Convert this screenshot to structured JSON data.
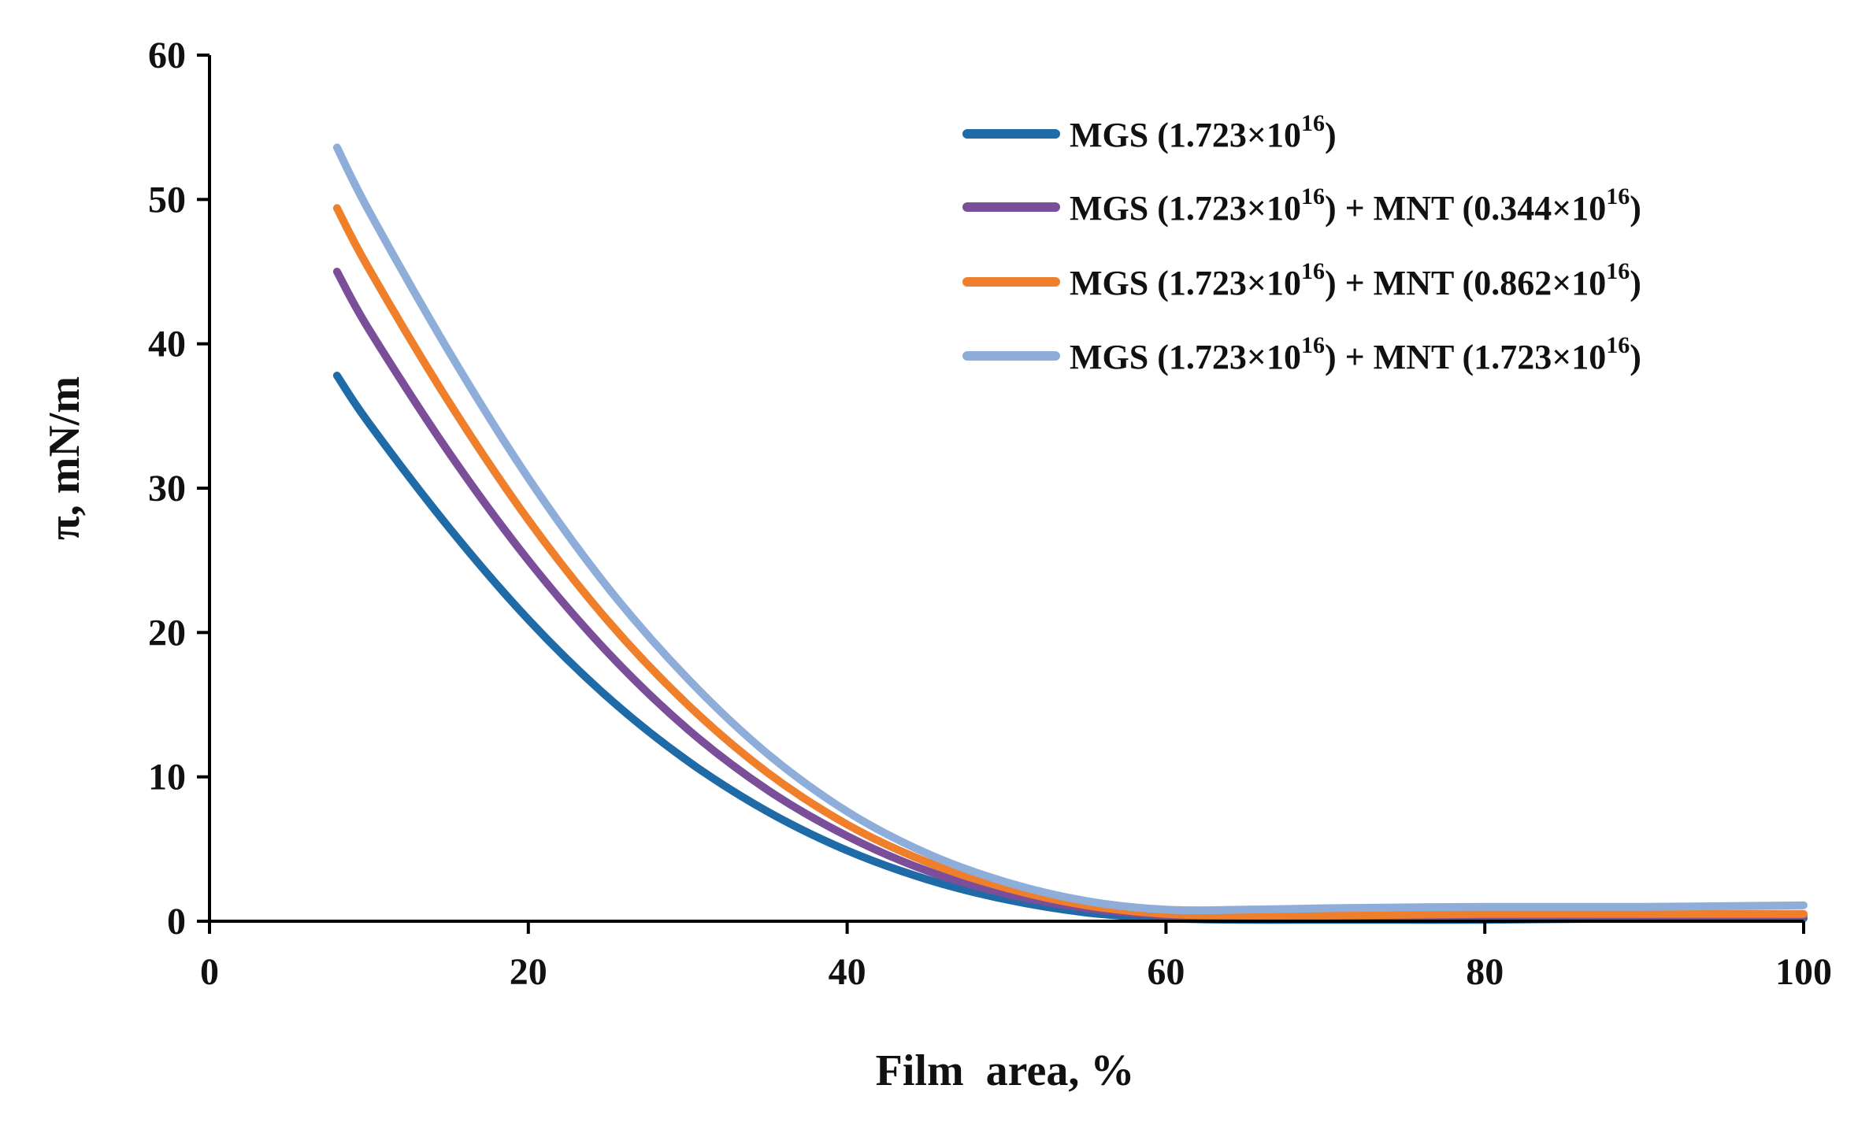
{
  "chart_data": {
    "type": "line",
    "title": "",
    "xlabel": "Film  area, %",
    "ylabel": "π, mN/m",
    "xlim": [
      0,
      100
    ],
    "ylim": [
      0,
      60
    ],
    "xticks": [
      "0",
      "20",
      "40",
      "60",
      "80",
      "100"
    ],
    "yticks": [
      "0",
      "10",
      "20",
      "30",
      "40",
      "50",
      "60"
    ],
    "grid": false,
    "legend_position": "top-right",
    "series": [
      {
        "name": "MGS (1.723×10^16)",
        "label_parts": [
          "MGS (1.723×10",
          "16",
          ")"
        ],
        "color": "#1F6BA8",
        "x": [
          8,
          10,
          15,
          20,
          25,
          30,
          35,
          40,
          45,
          50,
          55,
          60,
          65,
          70,
          80,
          90,
          100
        ],
        "y": [
          37.8,
          34.5,
          27.3,
          20.9,
          15.5,
          11.1,
          7.6,
          4.9,
          2.9,
          1.5,
          0.6,
          0.2,
          0.1,
          0.1,
          0.1,
          0.2,
          0.2
        ]
      },
      {
        "name": "MGS (1.723×10^16) + MNT (0.344×10^16)",
        "label_parts": [
          "MGS (1.723×10",
          "16",
          ") + MNT (0.344×10",
          "16",
          ")"
        ],
        "color": "#7B4E9A",
        "x": [
          8,
          10,
          15,
          20,
          25,
          30,
          35,
          40,
          45,
          50,
          55,
          60,
          65,
          70,
          80,
          90,
          100
        ],
        "y": [
          45.0,
          41.0,
          32.5,
          25.0,
          18.6,
          13.3,
          9.1,
          5.9,
          3.5,
          1.9,
          0.9,
          0.4,
          0.2,
          0.2,
          0.3,
          0.4,
          0.4
        ]
      },
      {
        "name": "MGS (1.723×10^16) + MNT (0.862×10^16)",
        "label_parts": [
          "MGS (1.723×10",
          "16",
          ") + MNT (0.862×10",
          "16",
          ")"
        ],
        "color": "#F07F2B",
        "x": [
          8,
          10,
          15,
          20,
          25,
          30,
          35,
          40,
          45,
          50,
          55,
          60,
          65,
          70,
          80,
          90,
          100
        ],
        "y": [
          49.4,
          45.2,
          36.0,
          27.8,
          20.8,
          15.0,
          10.3,
          6.7,
          4.1,
          2.3,
          1.1,
          0.5,
          0.4,
          0.4,
          0.5,
          0.5,
          0.5
        ]
      },
      {
        "name": "MGS (1.723×10^16) + MNT (1.723×10^16)",
        "label_parts": [
          "MGS (1.723×10",
          "16",
          ") + MNT (1.723×10",
          "16",
          ")"
        ],
        "color": "#8EAED9",
        "x": [
          8,
          10,
          15,
          20,
          25,
          30,
          35,
          40,
          45,
          50,
          55,
          60,
          65,
          70,
          80,
          90,
          100
        ],
        "y": [
          53.6,
          49.2,
          39.5,
          30.7,
          23.1,
          16.8,
          11.6,
          7.6,
          4.7,
          2.7,
          1.4,
          0.8,
          0.8,
          0.9,
          1.0,
          1.0,
          1.1
        ]
      }
    ]
  }
}
